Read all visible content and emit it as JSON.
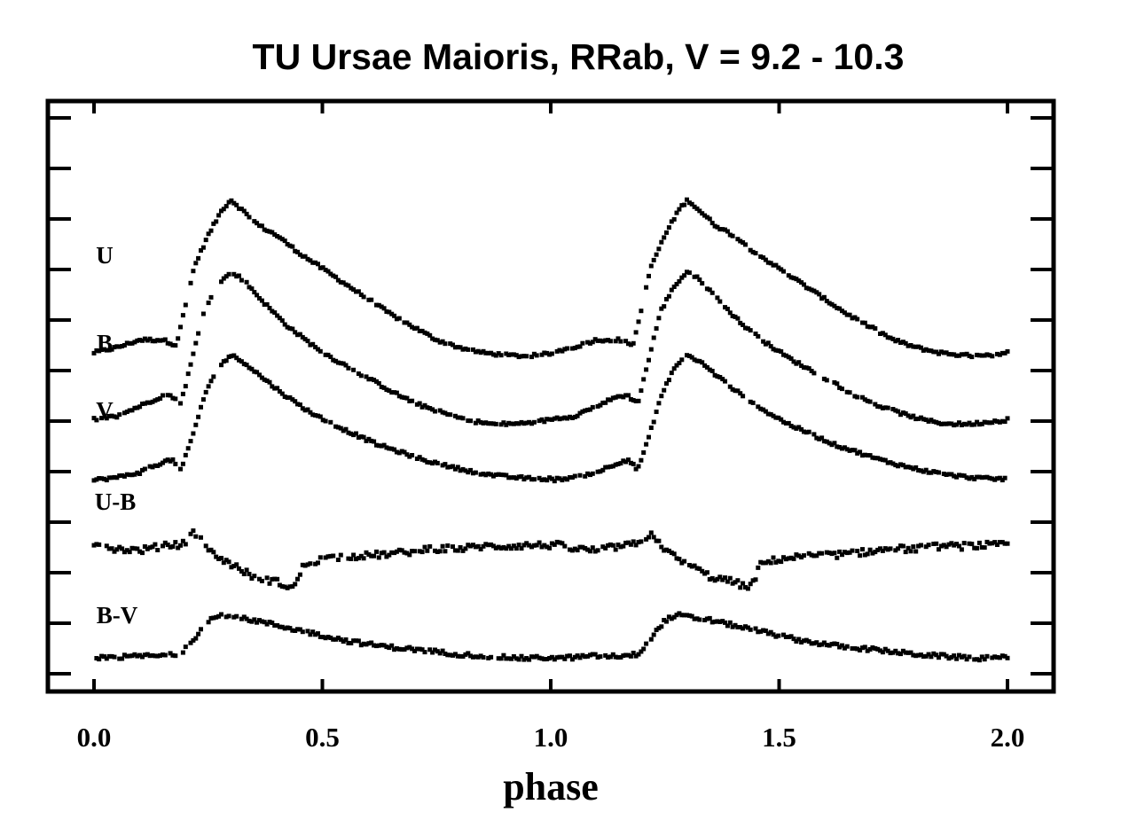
{
  "chart_data": {
    "type": "scatter",
    "title": "TU Ursae Maioris,  RRab, V = 9.2 - 10.3",
    "xlabel": "phase",
    "ylabel": "",
    "xlim": [
      -0.1,
      2.1
    ],
    "x_ticks": [
      0.0,
      0.5,
      1.0,
      1.5,
      2.0
    ],
    "x_tick_labels": [
      "0.0",
      "0.5",
      "1.0",
      "1.5",
      "2.0"
    ],
    "y_axis": "arbitrary magnitude offset (unlabeled)",
    "grid": false,
    "legend": "none; series labelled inline at left",
    "series": [
      {
        "name": "U",
        "phase_light_curve": [
          [
            0.0,
            6.3
          ],
          [
            0.05,
            6.4
          ],
          [
            0.1,
            6.55
          ],
          [
            0.15,
            6.55
          ],
          [
            0.18,
            6.45
          ],
          [
            0.2,
            7.2
          ],
          [
            0.22,
            8.0
          ],
          [
            0.25,
            8.6
          ],
          [
            0.28,
            9.1
          ],
          [
            0.3,
            9.3
          ],
          [
            0.33,
            9.05
          ],
          [
            0.36,
            8.8
          ],
          [
            0.4,
            8.6
          ],
          [
            0.45,
            8.25
          ],
          [
            0.5,
            7.95
          ],
          [
            0.55,
            7.65
          ],
          [
            0.6,
            7.35
          ],
          [
            0.65,
            7.05
          ],
          [
            0.7,
            6.8
          ],
          [
            0.75,
            6.55
          ],
          [
            0.8,
            6.4
          ],
          [
            0.85,
            6.3
          ],
          [
            0.9,
            6.25
          ],
          [
            0.95,
            6.23
          ],
          [
            1.0,
            6.28
          ],
          [
            1.03,
            6.3
          ],
          [
            1.07,
            6.35
          ],
          [
            1.1,
            6.55
          ],
          [
            1.15,
            6.6
          ],
          [
            1.18,
            6.45
          ]
        ]
      },
      {
        "name": "B",
        "phase_light_curve": [
          [
            0.0,
            5.0
          ],
          [
            0.05,
            5.05
          ],
          [
            0.1,
            5.25
          ],
          [
            0.15,
            5.45
          ],
          [
            0.17,
            5.45
          ],
          [
            0.19,
            5.3
          ],
          [
            0.21,
            6.0
          ],
          [
            0.24,
            7.1
          ],
          [
            0.27,
            7.6
          ],
          [
            0.3,
            7.9
          ],
          [
            0.33,
            7.7
          ],
          [
            0.37,
            7.3
          ],
          [
            0.42,
            6.85
          ],
          [
            0.47,
            6.5
          ],
          [
            0.52,
            6.2
          ],
          [
            0.57,
            5.95
          ],
          [
            0.62,
            5.7
          ],
          [
            0.67,
            5.45
          ],
          [
            0.72,
            5.25
          ],
          [
            0.77,
            5.1
          ],
          [
            0.82,
            4.97
          ],
          [
            0.87,
            4.9
          ],
          [
            0.92,
            4.9
          ],
          [
            0.97,
            4.95
          ],
          [
            1.02,
            5.0
          ],
          [
            1.06,
            4.95
          ],
          [
            1.1,
            5.1
          ],
          [
            1.14,
            5.35
          ],
          [
            1.16,
            5.45
          ],
          [
            1.19,
            5.3
          ]
        ]
      },
      {
        "name": "V",
        "phase_light_curve": [
          [
            0.0,
            3.8
          ],
          [
            0.05,
            3.85
          ],
          [
            0.1,
            3.95
          ],
          [
            0.15,
            4.15
          ],
          [
            0.17,
            4.2
          ],
          [
            0.19,
            4.0
          ],
          [
            0.21,
            4.5
          ],
          [
            0.24,
            5.4
          ],
          [
            0.27,
            6.0
          ],
          [
            0.3,
            6.25
          ],
          [
            0.33,
            6.1
          ],
          [
            0.37,
            5.8
          ],
          [
            0.42,
            5.45
          ],
          [
            0.47,
            5.15
          ],
          [
            0.52,
            4.9
          ],
          [
            0.57,
            4.7
          ],
          [
            0.62,
            4.5
          ],
          [
            0.67,
            4.35
          ],
          [
            0.72,
            4.2
          ],
          [
            0.77,
            4.08
          ],
          [
            0.82,
            3.98
          ],
          [
            0.87,
            3.9
          ],
          [
            0.92,
            3.85
          ],
          [
            0.97,
            3.82
          ],
          [
            1.02,
            3.83
          ],
          [
            1.06,
            3.8
          ],
          [
            1.1,
            3.95
          ],
          [
            1.14,
            4.1
          ],
          [
            1.16,
            4.18
          ],
          [
            1.19,
            4.05
          ]
        ]
      },
      {
        "name": "U-B",
        "phase_light_curve": [
          [
            0.0,
            2.55
          ],
          [
            0.05,
            2.45
          ],
          [
            0.1,
            2.42
          ],
          [
            0.15,
            2.5
          ],
          [
            0.2,
            2.55
          ],
          [
            0.22,
            2.8
          ],
          [
            0.23,
            2.65
          ],
          [
            0.26,
            2.35
          ],
          [
            0.3,
            2.15
          ],
          [
            0.35,
            1.9
          ],
          [
            0.4,
            1.8
          ],
          [
            0.43,
            1.7
          ],
          [
            0.44,
            1.72
          ],
          [
            0.46,
            2.15
          ],
          [
            0.5,
            2.25
          ],
          [
            0.55,
            2.3
          ],
          [
            0.6,
            2.32
          ],
          [
            0.65,
            2.35
          ],
          [
            0.7,
            2.4
          ],
          [
            0.75,
            2.45
          ],
          [
            0.8,
            2.45
          ],
          [
            0.85,
            2.5
          ],
          [
            0.9,
            2.5
          ],
          [
            0.95,
            2.52
          ],
          [
            1.0,
            2.52
          ],
          [
            1.05,
            2.5
          ],
          [
            1.1,
            2.5
          ],
          [
            1.15,
            2.52
          ],
          [
            1.2,
            2.55
          ],
          [
            1.22,
            2.82
          ]
        ]
      },
      {
        "name": "B-V",
        "phase_light_curve": [
          [
            0.0,
            0.3
          ],
          [
            0.05,
            0.32
          ],
          [
            0.1,
            0.35
          ],
          [
            0.15,
            0.35
          ],
          [
            0.19,
            0.38
          ],
          [
            0.22,
            0.7
          ],
          [
            0.25,
            1.05
          ],
          [
            0.28,
            1.15
          ],
          [
            0.31,
            1.1
          ],
          [
            0.35,
            1.05
          ],
          [
            0.4,
            0.95
          ],
          [
            0.45,
            0.85
          ],
          [
            0.5,
            0.75
          ],
          [
            0.55,
            0.65
          ],
          [
            0.6,
            0.58
          ],
          [
            0.65,
            0.52
          ],
          [
            0.7,
            0.48
          ],
          [
            0.75,
            0.43
          ],
          [
            0.8,
            0.38
          ],
          [
            0.85,
            0.35
          ],
          [
            0.9,
            0.32
          ],
          [
            0.95,
            0.3
          ],
          [
            1.0,
            0.32
          ],
          [
            1.05,
            0.34
          ],
          [
            1.1,
            0.36
          ],
          [
            1.15,
            0.37
          ],
          [
            1.19,
            0.4
          ]
        ]
      }
    ],
    "point_color": "#000000",
    "background_color": "#ffffff"
  }
}
